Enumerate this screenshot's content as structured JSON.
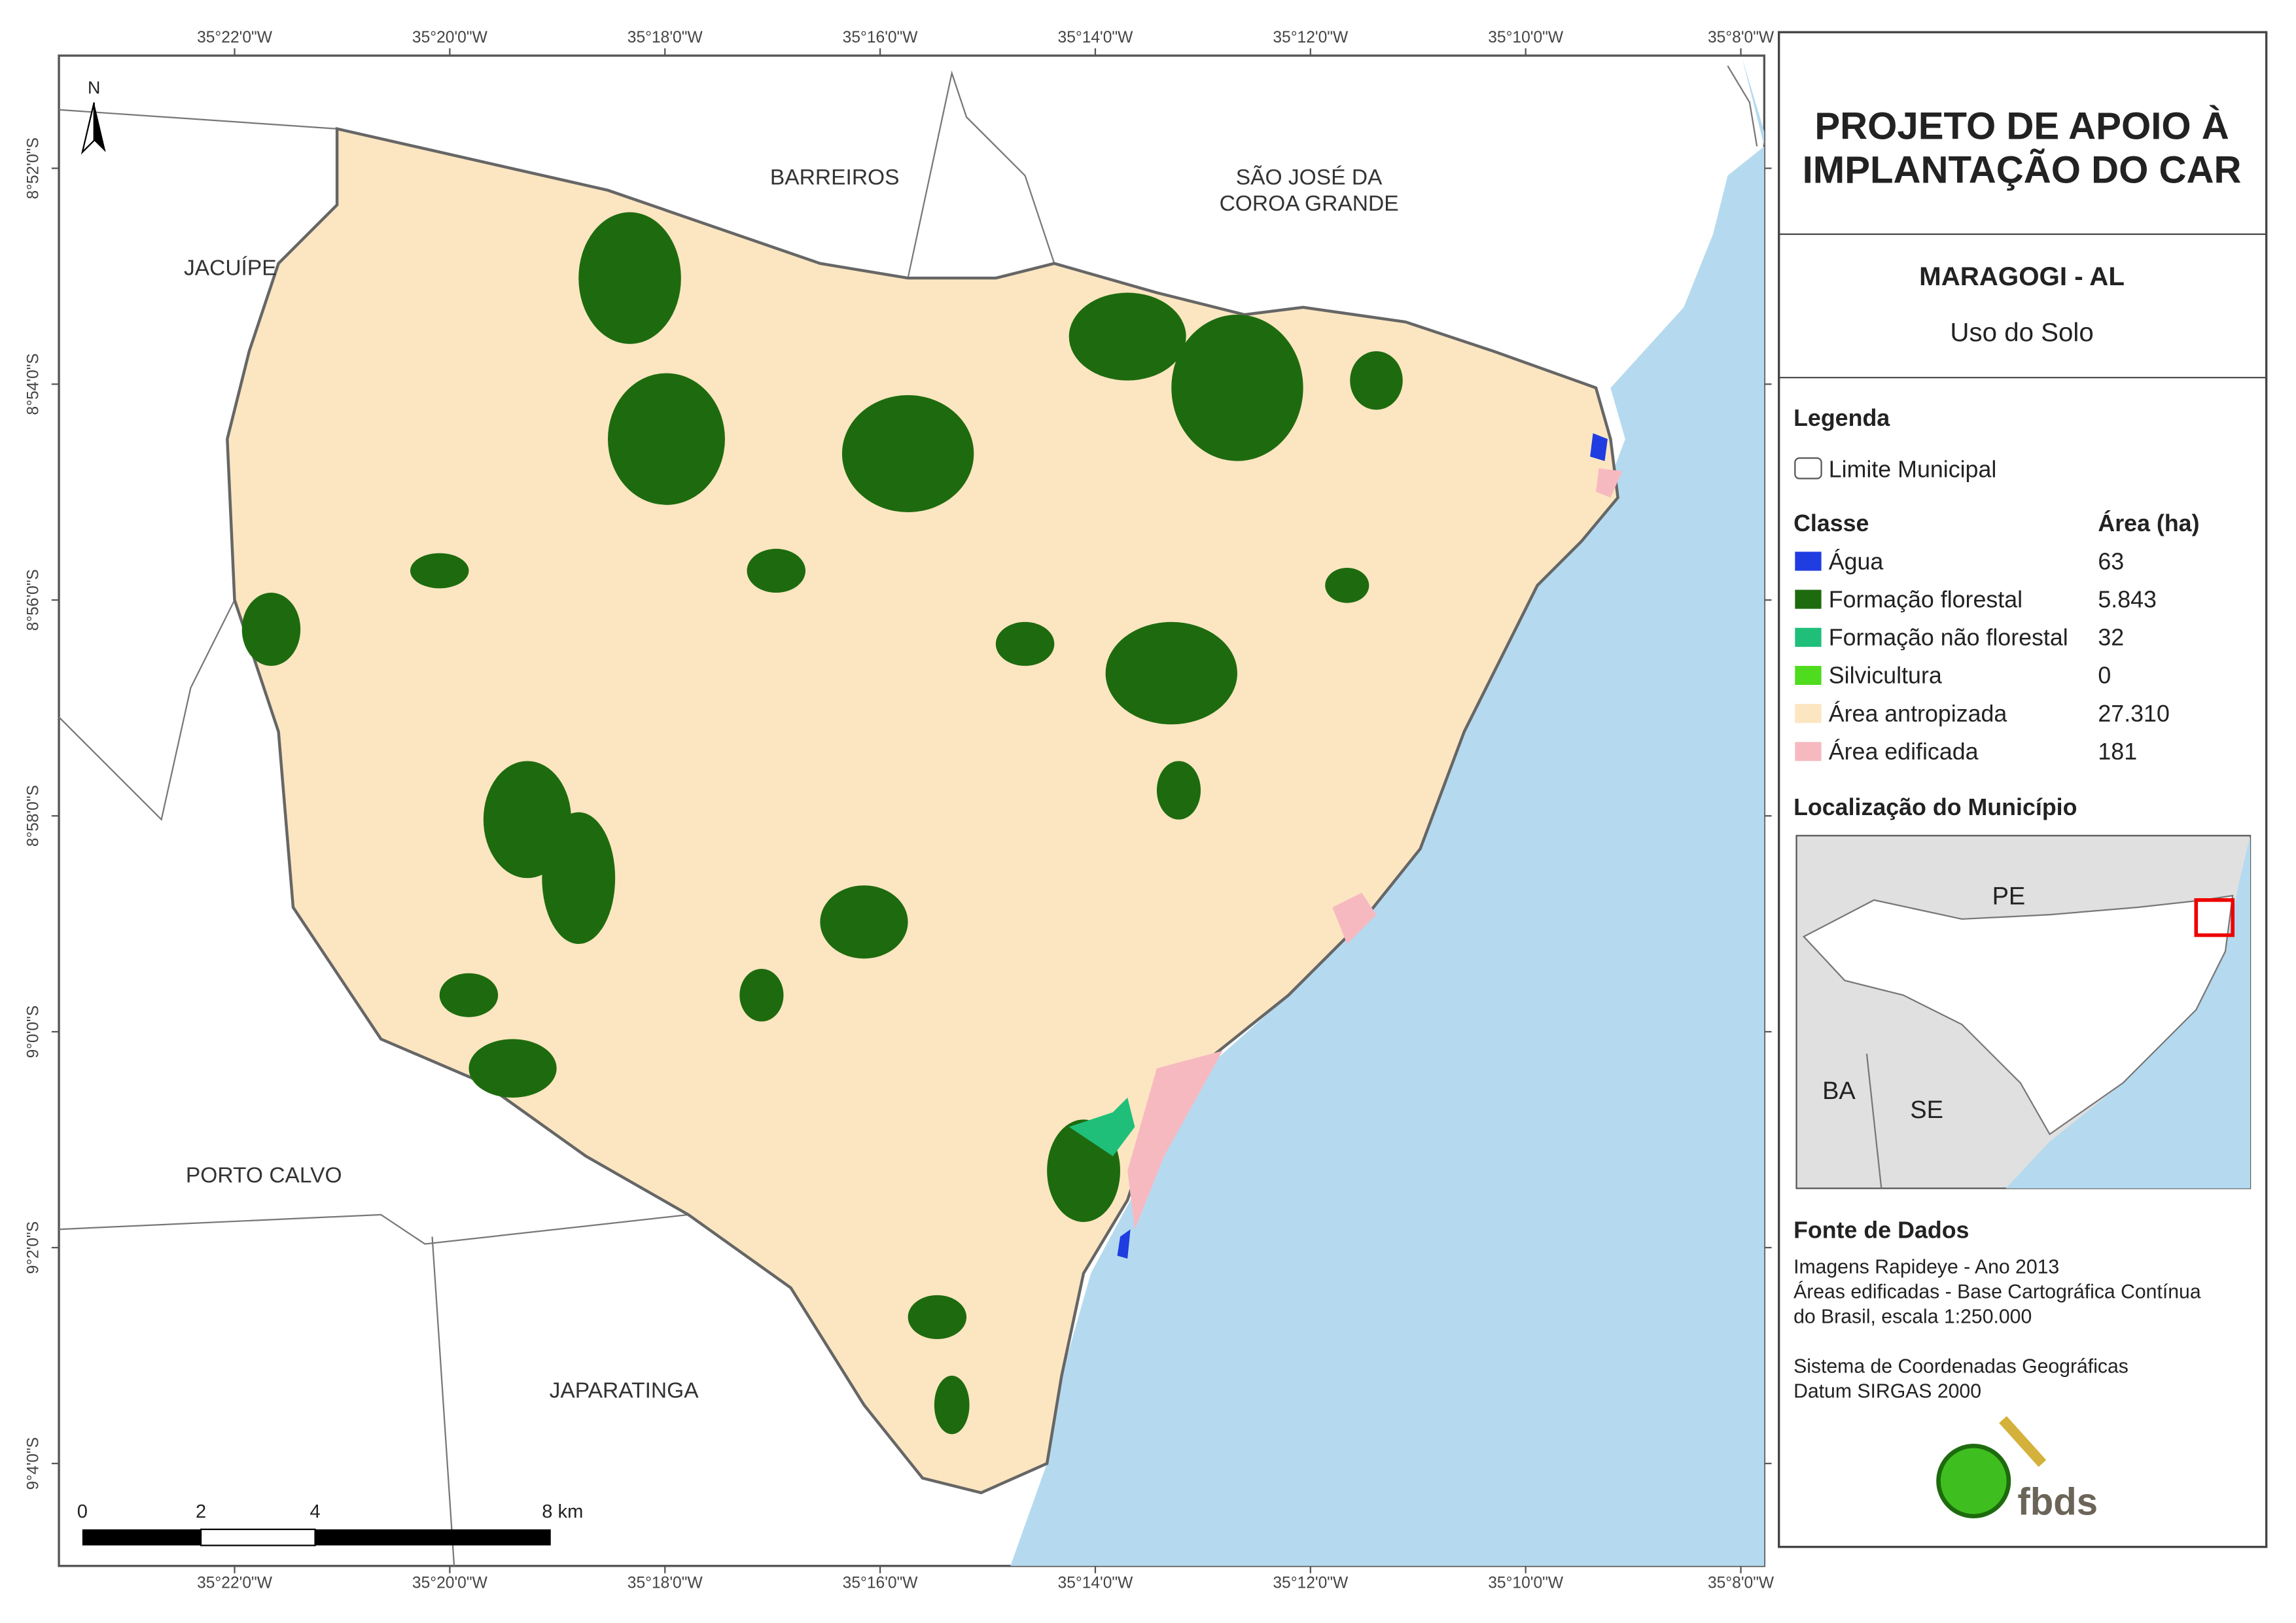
{
  "map": {
    "lon_labels": [
      "35°22'0\"W",
      "35°20'0\"W",
      "35°18'0\"W",
      "35°16'0\"W",
      "35°14'0\"W",
      "35°12'0\"W",
      "35°10'0\"W",
      "35°8'0\"W"
    ],
    "lat_labels": [
      "8°52'0\"S",
      "8°54'0\"S",
      "8°56'0\"S",
      "8°58'0\"S",
      "9°0'0\"S",
      "9°2'0\"S",
      "9°4'0\"S"
    ],
    "places": {
      "barreiros": "BARREIROS",
      "sao_jose_1": "SÃO JOSÉ DA",
      "sao_jose_2": "COROA GRANDE",
      "jacuipe": "JACUÍPE",
      "porto_calvo": "PORTO CALVO",
      "japaratinga": "JAPARATINGA"
    },
    "north": "N",
    "scale": {
      "labels": [
        "0",
        "2",
        "4",
        "8 km"
      ]
    }
  },
  "panel": {
    "title": [
      "PROJETO DE APOIO À",
      "IMPLANTAÇÃO DO CAR"
    ],
    "municipality": "MARAGOGI - AL",
    "subtitle": "Uso do Solo",
    "legend_title": "Legenda",
    "boundary": "Limite Municipal",
    "class_header": "Classe",
    "area_header": "Área (ha)",
    "classes": [
      {
        "name": "Água",
        "area": "63",
        "color": "#1f3de0"
      },
      {
        "name": "Formação florestal",
        "area": "5.843",
        "color": "#1e6b0f"
      },
      {
        "name": "Formação não florestal",
        "area": "32",
        "color": "#1fbf7a"
      },
      {
        "name": "Silvicultura",
        "area": "0",
        "color": "#4fdc1e"
      },
      {
        "name": "Área antropizada",
        "area": "27.310",
        "color": "#fbe6c1"
      },
      {
        "name": "Área edificada",
        "area": "181",
        "color": "#f7b9c0"
      }
    ],
    "location_title": "Localização do Município",
    "locator": {
      "pe": "PE",
      "ba": "BA",
      "se": "SE"
    },
    "source_title": "Fonte de Dados",
    "source_lines": [
      "Imagens Rapideye - Ano 2013",
      "Áreas edificadas - Base Cartográfica Contínua",
      "do Brasil, escala 1:250.000"
    ],
    "crs_lines": [
      "Sistema de Coordenadas Geográficas",
      "Datum SIRGAS 2000"
    ],
    "logo": "fbds"
  }
}
